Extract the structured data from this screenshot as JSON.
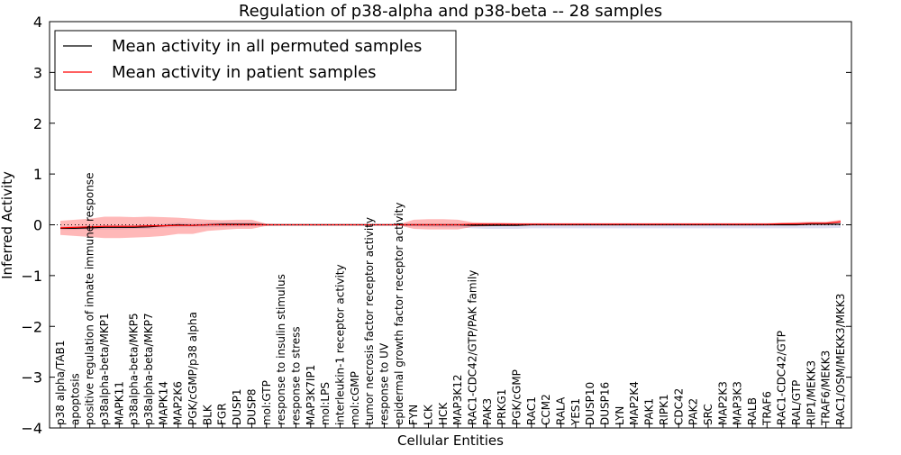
{
  "chart_data": {
    "type": "line",
    "title": "Regulation of p38-alpha and p38-beta -- 28 samples",
    "xlabel": "Cellular Entities",
    "ylabel": "Inferred Activity",
    "ylim": [
      -4,
      4
    ],
    "yticks": [
      "−4",
      "−3",
      "−2",
      "−1",
      "0",
      "1",
      "2",
      "3",
      "4"
    ],
    "grid": false,
    "legend_position": "top-left",
    "categories": [
      "p38 alpha/TAB1",
      "apoptosis",
      "positive regulation of innate immune response",
      "p38alpha-beta/MKP1",
      "MAPK11",
      "p38alpha-beta/MKP5",
      "p38alpha-beta/MKP7",
      "MAPK14",
      "MAP2K6",
      "PGK/cGMP/p38 alpha",
      "BLK",
      "FGR",
      "DUSP1",
      "DUSP8",
      "mol:GTP",
      "response to insulin stimulus",
      "response to stress",
      "MAP3K7IP1",
      "mol:LPS",
      "interleukin-1 receptor activity",
      "mol:cGMP",
      "tumor necrosis factor receptor activity",
      "response to UV",
      "epidermal growth factor receptor activity",
      "FYN",
      "LCK",
      "HCK",
      "MAP3K12",
      "RAC1-CDC42/GTP/PAK family",
      "PAK3",
      "PRKG1",
      "PGK/cGMP",
      "RAC1",
      "CCM2",
      "RALA",
      "YES1",
      "DUSP10",
      "DUSP16",
      "LYN",
      "MAP2K4",
      "PAK1",
      "RIPK1",
      "CDC42",
      "PAK2",
      "SRC",
      "MAP2K3",
      "MAP3K3",
      "RALB",
      "TRAF6",
      "RAC1-CDC42/GTP",
      "RAL/GTP",
      "RIP1/MEKK3",
      "TRAF6/MEKK3",
      "RAC1/OSM/MEKK3/MKK3"
    ],
    "series": [
      {
        "name": "Mean activity in all permuted samples",
        "color": "#000000",
        "values": [
          -0.07,
          -0.07,
          -0.06,
          -0.05,
          -0.05,
          -0.05,
          -0.04,
          -0.02,
          0.0,
          -0.01,
          0.0,
          0.01,
          0.01,
          0.01,
          0.0,
          0.0,
          0.0,
          0.0,
          0.0,
          0.0,
          0.0,
          0.0,
          0.0,
          0.0,
          0.0,
          0.0,
          0.0,
          0.0,
          -0.01,
          -0.01,
          -0.01,
          -0.01,
          0.0,
          0.0,
          0.0,
          0.0,
          0.0,
          0.0,
          0.0,
          0.0,
          0.0,
          0.0,
          0.0,
          0.0,
          0.0,
          0.0,
          0.0,
          0.0,
          0.0,
          0.0,
          0.0,
          0.01,
          0.01,
          0.01
        ],
        "band_lower": [
          -0.1,
          -0.1,
          -0.09,
          -0.09,
          -0.09,
          -0.08,
          -0.08,
          -0.06,
          -0.05,
          -0.05,
          -0.05,
          -0.04,
          -0.04,
          -0.03,
          -0.02,
          -0.02,
          -0.02,
          -0.02,
          -0.02,
          -0.02,
          -0.02,
          -0.02,
          -0.02,
          -0.02,
          -0.03,
          -0.04,
          -0.05,
          -0.05,
          -0.07,
          -0.08,
          -0.08,
          -0.08,
          -0.07,
          -0.07,
          -0.07,
          -0.07,
          -0.07,
          -0.07,
          -0.07,
          -0.07,
          -0.07,
          -0.07,
          -0.07,
          -0.07,
          -0.07,
          -0.07,
          -0.07,
          -0.07,
          -0.07,
          -0.07,
          -0.07,
          -0.07,
          -0.07,
          -0.06
        ],
        "band_upper": [
          -0.03,
          -0.03,
          -0.02,
          -0.01,
          -0.01,
          -0.01,
          0.0,
          0.02,
          0.04,
          0.03,
          0.04,
          0.05,
          0.05,
          0.05,
          0.02,
          0.02,
          0.02,
          0.02,
          0.02,
          0.02,
          0.02,
          0.02,
          0.02,
          0.02,
          0.02,
          0.02,
          0.02,
          0.02,
          0.02,
          0.03,
          0.03,
          0.03,
          0.03,
          0.03,
          0.03,
          0.03,
          0.03,
          0.03,
          0.03,
          0.03,
          0.03,
          0.03,
          0.03,
          0.03,
          0.03,
          0.03,
          0.03,
          0.03,
          0.03,
          0.03,
          0.04,
          0.05,
          0.05,
          0.06
        ]
      },
      {
        "name": "Mean activity in patient samples",
        "color": "#ff0000",
        "values": [
          -0.06,
          -0.05,
          -0.04,
          -0.03,
          -0.03,
          -0.03,
          -0.02,
          -0.02,
          -0.01,
          -0.01,
          0.0,
          0.0,
          0.0,
          0.0,
          0.0,
          0.0,
          0.0,
          0.0,
          0.0,
          0.0,
          0.0,
          0.0,
          0.0,
          0.0,
          0.0,
          0.0,
          0.0,
          0.0,
          0.01,
          0.01,
          0.01,
          0.01,
          0.01,
          0.01,
          0.01,
          0.01,
          0.01,
          0.01,
          0.01,
          0.01,
          0.01,
          0.01,
          0.01,
          0.01,
          0.01,
          0.01,
          0.01,
          0.01,
          0.01,
          0.02,
          0.02,
          0.03,
          0.03,
          0.06
        ],
        "band_lower": [
          -0.2,
          -0.22,
          -0.24,
          -0.26,
          -0.26,
          -0.25,
          -0.24,
          -0.22,
          -0.18,
          -0.18,
          -0.12,
          -0.1,
          -0.08,
          -0.08,
          -0.02,
          -0.01,
          -0.01,
          -0.01,
          -0.01,
          -0.01,
          -0.01,
          -0.01,
          -0.01,
          -0.01,
          -0.08,
          -0.09,
          -0.09,
          -0.09,
          -0.04,
          -0.03,
          -0.02,
          -0.02,
          -0.01,
          -0.01,
          -0.01,
          -0.01,
          -0.01,
          -0.01,
          -0.01,
          -0.01,
          -0.01,
          -0.01,
          -0.01,
          -0.01,
          -0.01,
          -0.01,
          -0.01,
          -0.01,
          -0.01,
          0.0,
          0.0,
          0.01,
          0.01,
          0.03
        ],
        "band_upper": [
          0.08,
          0.1,
          0.12,
          0.16,
          0.16,
          0.15,
          0.16,
          0.15,
          0.14,
          0.12,
          0.1,
          0.09,
          0.1,
          0.1,
          0.02,
          0.01,
          0.01,
          0.01,
          0.01,
          0.01,
          0.01,
          0.01,
          0.01,
          0.01,
          0.1,
          0.11,
          0.11,
          0.1,
          0.05,
          0.04,
          0.04,
          0.03,
          0.03,
          0.03,
          0.03,
          0.03,
          0.03,
          0.03,
          0.03,
          0.03,
          0.03,
          0.03,
          0.03,
          0.03,
          0.03,
          0.03,
          0.03,
          0.03,
          0.03,
          0.04,
          0.05,
          0.06,
          0.06,
          0.1
        ]
      }
    ]
  }
}
